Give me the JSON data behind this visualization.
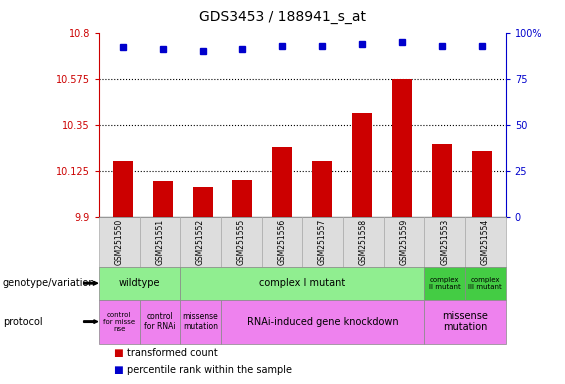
{
  "title": "GDS3453 / 188941_s_at",
  "samples": [
    "GSM251550",
    "GSM251551",
    "GSM251552",
    "GSM251555",
    "GSM251556",
    "GSM251557",
    "GSM251558",
    "GSM251559",
    "GSM251553",
    "GSM251554"
  ],
  "bar_values": [
    10.175,
    10.075,
    10.045,
    10.08,
    10.24,
    10.175,
    10.41,
    10.575,
    10.255,
    10.22
  ],
  "dot_values": [
    92,
    91,
    90,
    91,
    93,
    93,
    94,
    95,
    93,
    93
  ],
  "ylim": [
    9.9,
    10.8
  ],
  "y2lim": [
    0,
    100
  ],
  "yticks": [
    9.9,
    10.125,
    10.35,
    10.575,
    10.8
  ],
  "ytick_labels": [
    "9.9",
    "10.125",
    "10.35",
    "10.575",
    "10.8"
  ],
  "y2ticks": [
    0,
    25,
    50,
    75,
    100
  ],
  "y2tick_labels": [
    "0",
    "25",
    "50",
    "75",
    "100%"
  ],
  "bar_color": "#cc0000",
  "dot_color": "#0000cc",
  "bg_color": "#ffffff",
  "tick_color_left": "#cc0000",
  "tick_color_right": "#0000cc",
  "geno_segments": [
    {
      "start": 0,
      "end": 2,
      "color": "#90ee90",
      "label": "wildtype",
      "fontsize": 7
    },
    {
      "start": 2,
      "end": 8,
      "color": "#90ee90",
      "label": "complex I mutant",
      "fontsize": 7
    },
    {
      "start": 8,
      "end": 9,
      "color": "#44cc44",
      "label": "complex\nII mutant",
      "fontsize": 5.0
    },
    {
      "start": 9,
      "end": 10,
      "color": "#44cc44",
      "label": "complex\nIII mutant",
      "fontsize": 5.0
    }
  ],
  "proto_segments": [
    {
      "start": 0,
      "end": 1,
      "color": "#ee82ee",
      "label": "control\nfor misse\nnse",
      "fontsize": 5.0
    },
    {
      "start": 1,
      "end": 2,
      "color": "#ee82ee",
      "label": "control\nfor RNAi",
      "fontsize": 5.5
    },
    {
      "start": 2,
      "end": 3,
      "color": "#ee82ee",
      "label": "missense\nmutation",
      "fontsize": 5.5
    },
    {
      "start": 3,
      "end": 8,
      "color": "#ee82ee",
      "label": "RNAi-induced gene knockdown",
      "fontsize": 7
    },
    {
      "start": 8,
      "end": 10,
      "color": "#ee82ee",
      "label": "missense\nmutation",
      "fontsize": 7
    }
  ],
  "legend_items": [
    {
      "color": "#cc0000",
      "label": "transformed count"
    },
    {
      "color": "#0000cc",
      "label": "percentile rank within the sample"
    }
  ],
  "row_label_genotype": "genotype/variation",
  "row_label_protocol": "protocol"
}
